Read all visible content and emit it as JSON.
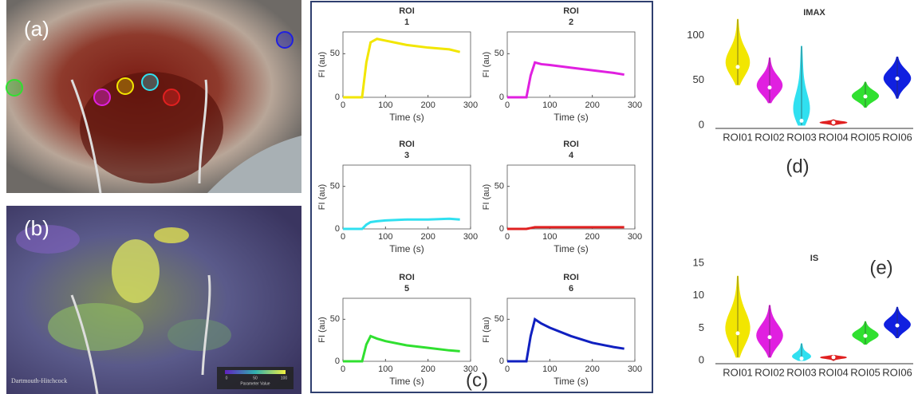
{
  "panel_labels": [
    "(a)",
    "(b)",
    "(c)",
    "(d)",
    "(e)"
  ],
  "photo_b": {
    "credit": "Dartmouth-Hitchcock",
    "colorbar_ticks": [
      "0",
      "50",
      "100"
    ],
    "colorbar_label": "Parameter Value"
  },
  "chart_data": [
    {
      "type": "line",
      "title": "ROI",
      "subtitle": "1",
      "x": [
        0,
        45,
        55,
        65,
        80,
        100,
        150,
        200,
        250,
        275
      ],
      "values": [
        0,
        0,
        40,
        63,
        67,
        65,
        60,
        57,
        55,
        52
      ],
      "color": "#f2e600",
      "xlim": [
        0,
        300
      ],
      "xticks": [
        0,
        100,
        200,
        300
      ],
      "ylim": [
        0,
        75
      ],
      "yticks": [
        0,
        50
      ],
      "xlabel": "Time (s)",
      "ylabel": "FI (au)"
    },
    {
      "type": "line",
      "title": "ROI",
      "subtitle": "2",
      "x": [
        0,
        45,
        55,
        65,
        80,
        100,
        150,
        200,
        250,
        275
      ],
      "values": [
        0,
        0,
        25,
        40,
        38,
        37,
        34,
        31,
        28,
        26
      ],
      "color": "#e020e0",
      "xlim": [
        0,
        300
      ],
      "xticks": [
        0,
        100,
        200,
        300
      ],
      "ylim": [
        0,
        75
      ],
      "yticks": [
        0,
        50
      ],
      "xlabel": "Time (s)",
      "ylabel": "FI (au)"
    },
    {
      "type": "line",
      "title": "ROI",
      "subtitle": "3",
      "x": [
        0,
        45,
        55,
        65,
        80,
        100,
        150,
        200,
        250,
        275
      ],
      "values": [
        0,
        0,
        5,
        8,
        9,
        10,
        11,
        11,
        12,
        11
      ],
      "color": "#30e0f0",
      "xlim": [
        0,
        300
      ],
      "xticks": [
        0,
        100,
        200,
        300
      ],
      "ylim": [
        0,
        75
      ],
      "yticks": [
        0,
        50
      ],
      "xlabel": "Time (s)",
      "ylabel": "FI (au)"
    },
    {
      "type": "line",
      "title": "ROI",
      "subtitle": "4",
      "x": [
        0,
        45,
        55,
        65,
        80,
        100,
        150,
        200,
        250,
        275
      ],
      "values": [
        0,
        0,
        1,
        2,
        2,
        2,
        2,
        2,
        2,
        2
      ],
      "color": "#e02020",
      "xlim": [
        0,
        300
      ],
      "xticks": [
        0,
        100,
        200,
        300
      ],
      "ylim": [
        0,
        75
      ],
      "yticks": [
        0,
        50
      ],
      "xlabel": "Time (s)",
      "ylabel": "FI (au)"
    },
    {
      "type": "line",
      "title": "ROI",
      "subtitle": "5",
      "x": [
        0,
        45,
        55,
        65,
        80,
        100,
        150,
        200,
        250,
        275
      ],
      "values": [
        0,
        0,
        20,
        30,
        27,
        24,
        19,
        16,
        13,
        12
      ],
      "color": "#30e030",
      "xlim": [
        0,
        300
      ],
      "xticks": [
        0,
        100,
        200,
        300
      ],
      "ylim": [
        0,
        75
      ],
      "yticks": [
        0,
        50
      ],
      "xlabel": "Time (s)",
      "ylabel": "FI (au)"
    },
    {
      "type": "line",
      "title": "ROI",
      "subtitle": "6",
      "x": [
        0,
        45,
        55,
        65,
        80,
        100,
        150,
        200,
        250,
        275
      ],
      "values": [
        0,
        0,
        30,
        50,
        45,
        40,
        30,
        22,
        17,
        15
      ],
      "color": "#1020c0",
      "xlim": [
        0,
        300
      ],
      "xticks": [
        0,
        100,
        200,
        300
      ],
      "ylim": [
        0,
        75
      ],
      "yticks": [
        0,
        50
      ],
      "xlabel": "Time (s)",
      "ylabel": "FI (au)"
    },
    {
      "type": "violin",
      "title": "IMAX",
      "categories": [
        "ROI01",
        "ROI02",
        "ROI03",
        "ROI04",
        "ROI05",
        "ROI06"
      ],
      "min": [
        45,
        25,
        0,
        0,
        20,
        30
      ],
      "median": [
        65,
        42,
        5,
        3,
        32,
        52
      ],
      "max": [
        118,
        75,
        88,
        6,
        48,
        76
      ],
      "colors": [
        "#f2e600",
        "#e020e0",
        "#30e0f0",
        "#e02020",
        "#30e030",
        "#1020e0"
      ],
      "ylim": [
        0,
        120
      ],
      "yticks": [
        0,
        50,
        100
      ]
    },
    {
      "type": "violin",
      "title": "IS",
      "categories": [
        "ROI01",
        "ROI02",
        "ROI03",
        "ROI04",
        "ROI05",
        "ROI06"
      ],
      "min": [
        0.5,
        0.5,
        0,
        0,
        2.5,
        3.5
      ],
      "median": [
        4.2,
        3.6,
        0.3,
        0.5,
        3.8,
        5.4
      ],
      "max": [
        13,
        8.5,
        2.6,
        0.8,
        6,
        8.2
      ],
      "colors": [
        "#f2e600",
        "#e020e0",
        "#30e0f0",
        "#e02020",
        "#30e030",
        "#1020e0"
      ],
      "ylim": [
        0,
        15
      ],
      "yticks": [
        0,
        5,
        10,
        15
      ]
    }
  ]
}
